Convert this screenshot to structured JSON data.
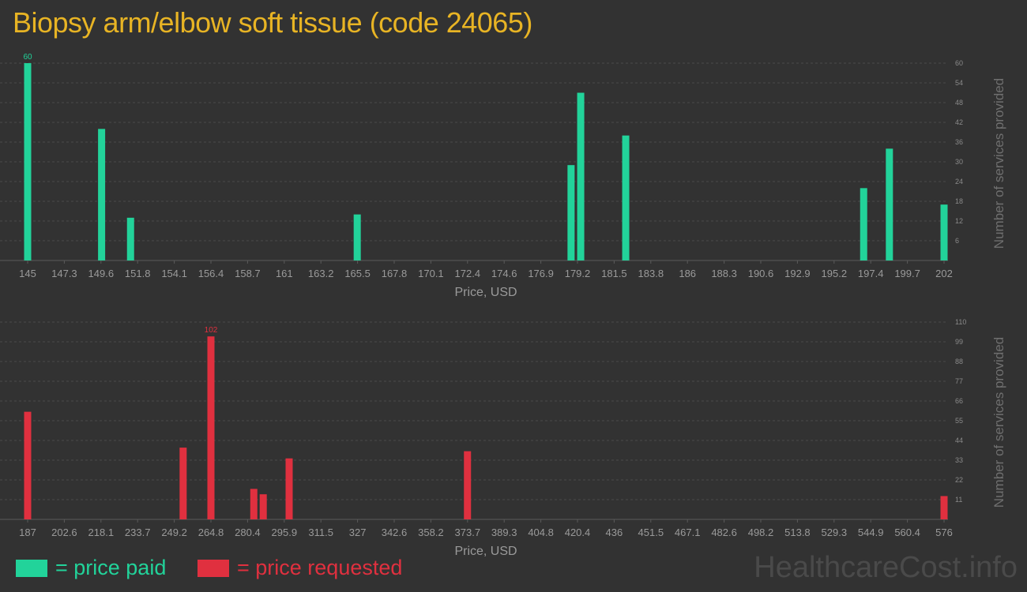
{
  "title": "Biopsy arm/elbow soft tissue (code 24065)",
  "colors": {
    "paid": "#22d39a",
    "requested": "#e0303f",
    "title": "#e8b424"
  },
  "legend": {
    "paid": "= price paid",
    "requested": "= price requested"
  },
  "watermark": "HealthcareCost.info",
  "chart_data": [
    {
      "type": "bar",
      "series_name": "price paid",
      "xlabel": "Price, USD",
      "ylabel": "Number of services provided",
      "x_ticks": [
        "145",
        "147.3",
        "149.6",
        "151.8",
        "154.1",
        "156.4",
        "158.7",
        "161",
        "163.2",
        "165.5",
        "167.8",
        "170.1",
        "172.4",
        "174.6",
        "176.9",
        "179.2",
        "181.5",
        "183.8",
        "186",
        "188.3",
        "190.6",
        "192.9",
        "195.2",
        "197.4",
        "199.7",
        "202"
      ],
      "y_ticks": [
        6,
        12,
        18,
        24,
        30,
        36,
        42,
        48,
        54,
        60
      ],
      "xlim": [
        145,
        202
      ],
      "ylim": [
        0,
        60
      ],
      "peak_label": "60",
      "bars": [
        {
          "x": 145.0,
          "y": 60
        },
        {
          "x": 149.6,
          "y": 40
        },
        {
          "x": 151.4,
          "y": 13
        },
        {
          "x": 165.5,
          "y": 14
        },
        {
          "x": 178.8,
          "y": 29
        },
        {
          "x": 179.4,
          "y": 51
        },
        {
          "x": 182.2,
          "y": 38
        },
        {
          "x": 197.0,
          "y": 22
        },
        {
          "x": 198.6,
          "y": 34
        },
        {
          "x": 202.0,
          "y": 17
        }
      ]
    },
    {
      "type": "bar",
      "series_name": "price requested",
      "xlabel": "Price, USD",
      "ylabel": "Number of services provided",
      "x_ticks": [
        "187",
        "202.6",
        "218.1",
        "233.7",
        "249.2",
        "264.8",
        "280.4",
        "295.9",
        "311.5",
        "327",
        "342.6",
        "358.2",
        "373.7",
        "389.3",
        "404.8",
        "420.4",
        "436",
        "451.5",
        "467.1",
        "482.6",
        "498.2",
        "513.8",
        "529.3",
        "544.9",
        "560.4",
        "576"
      ],
      "y_ticks": [
        11,
        22,
        33,
        44,
        55,
        66,
        77,
        88,
        99,
        110
      ],
      "xlim": [
        187,
        576
      ],
      "ylim": [
        0,
        110
      ],
      "peak_label": "102",
      "bars": [
        {
          "x": 187.0,
          "y": 60
        },
        {
          "x": 253.0,
          "y": 40
        },
        {
          "x": 264.8,
          "y": 102
        },
        {
          "x": 283.0,
          "y": 17
        },
        {
          "x": 287.0,
          "y": 14
        },
        {
          "x": 298.0,
          "y": 34
        },
        {
          "x": 373.7,
          "y": 38
        },
        {
          "x": 576.0,
          "y": 13
        }
      ]
    }
  ]
}
